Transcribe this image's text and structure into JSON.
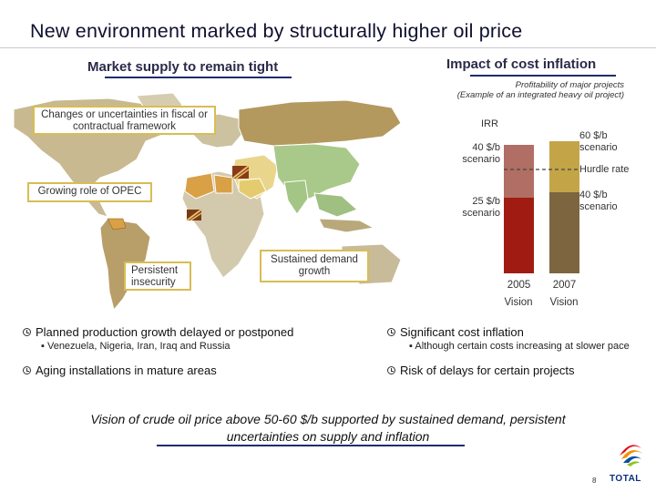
{
  "title": "New environment marked by structurally higher oil price",
  "left": {
    "heading": "Market supply to remain tight",
    "callouts": {
      "fiscal": "Changes or uncertainties in fiscal or contractual framework",
      "opec": "Growing role of OPEC",
      "insecurity": "Persistent insecurity",
      "demand": "Sustained demand growth"
    }
  },
  "right": {
    "heading": "Impact of cost inflation",
    "subtitle_line1": "Profitability of major projects",
    "subtitle_line2": "(Example of an integrated heavy oil project)",
    "chart": {
      "irr_label": "IRR",
      "hurdle_label": "Hurdle rate",
      "bars": [
        {
          "year": "2005",
          "caption": "Vision"
        },
        {
          "year": "2007",
          "caption": "Vision"
        }
      ],
      "scenario_labels": {
        "s2005_high": "40 $/b scenario",
        "s2005_low": "25 $/b scenario",
        "s2007_high": "60 $/b scenario",
        "s2007_low": "40 $/b scenario"
      },
      "colors": {
        "s2005_low": "#a01c12",
        "s2005_high": "#b06e64",
        "s2007_low": "#7d6540",
        "s2007_high": "#c3a547"
      }
    }
  },
  "bullets_left": [
    {
      "text": "Planned production growth delayed or postponed",
      "sub": "Venezuela, Nigeria, Iran, Iraq and Russia"
    },
    {
      "text": "Aging installations in mature areas",
      "sub": ""
    }
  ],
  "bullets_right": [
    {
      "text": "Significant cost inflation",
      "sub": "Although certain costs increasing at slower pace"
    },
    {
      "text": "Risk of delays for certain projects",
      "sub": ""
    }
  ],
  "conclusion": "Vision of crude oil price above 50-60 $/b supported by sustained demand, persistent uncertainties on supply and inflation",
  "page_number": "8",
  "logo_text": "TOTAL"
}
